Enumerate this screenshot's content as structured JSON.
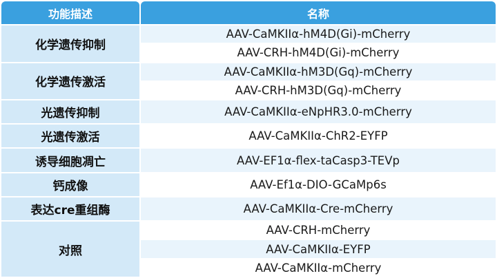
{
  "header": {
    "function_label": "功能描述",
    "name_label": "名称"
  },
  "groups": [
    {
      "function": "化学遗传抑制",
      "names": [
        "AAV-CaMKIIα-hM4D(Gi)-mCherry",
        "AAV-CRH-hM4D(Gi)-mCherry"
      ]
    },
    {
      "function": "化学遗传激活",
      "names": [
        "AAV-CaMKIIα-hM3D(Gq)-mCherry",
        "AAV-CRH-hM3D(Gq)-mCherry"
      ]
    },
    {
      "function": "光遗传抑制",
      "names": [
        "AAV-CaMKIIα-eNpHR3.0-mCherry"
      ]
    },
    {
      "function": "光遗传激活",
      "names": [
        "AAV-CaMKIIα-ChR2-EYFP"
      ]
    },
    {
      "function": "诱导细胞凋亡",
      "names": [
        "AAV-EF1α-flex-taCasp3-TEVp"
      ]
    },
    {
      "function": "钙成像",
      "names": [
        "AAV-Ef1α-DIO-GCaMp6s"
      ]
    },
    {
      "function": "表达cre重组酶",
      "names": [
        "AAV-CaMKIIα-Cre-mCherry"
      ]
    },
    {
      "function": "对照",
      "names": [
        "AAV-CRH-mCherry",
        "AAV-CaMKIIα-EYFP",
        "AAV-CaMKIIα-mCherry"
      ]
    }
  ],
  "colors": {
    "header_bg": "#3aa0df",
    "function_bg": "#d3e9f8",
    "row_shade": "#e9f4fc",
    "row_plain": "#ffffff"
  }
}
